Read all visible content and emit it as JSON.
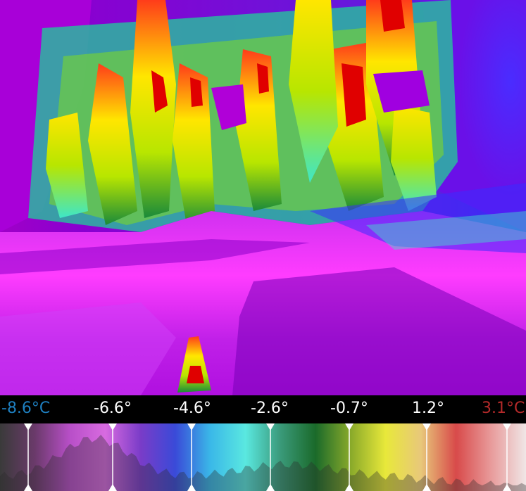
{
  "image": {
    "kind": "thermal-camera-image",
    "subject": "snowy hillside with conifer trees",
    "palette_colors": [
      "#0a0a1a",
      "#3a006a",
      "#9a00d8",
      "#ff3cff",
      "#3a2cff",
      "#16c8ff",
      "#3ee6c8",
      "#1a8a3a",
      "#b8e600",
      "#ffe600",
      "#ff3c1a",
      "#ffffff"
    ]
  },
  "temperature_scale": {
    "min_label": "-8.6°C",
    "ticks": [
      "-6.6°",
      "-4.6°",
      "-2.6°",
      "-0.7°",
      "1.2°"
    ],
    "max_label": "3.1°C",
    "min_color": "#1e7fc0",
    "tick_color": "#ffffff",
    "max_color": "#b42a2a"
  },
  "palette_bar": {
    "colors": [
      "#3a3a3a",
      "#6b3a6b",
      "#b84fc8",
      "#d86be0",
      "#7a3cc8",
      "#3a4ad8",
      "#3ab8e8",
      "#5ae8e0",
      "#3a9a7a",
      "#1a6a2a",
      "#8aaa2a",
      "#e8e83a",
      "#e8c87a",
      "#d84a4a",
      "#e89a9a",
      "#f0e6e6"
    ],
    "histogram_color": "#2a2a2a"
  }
}
